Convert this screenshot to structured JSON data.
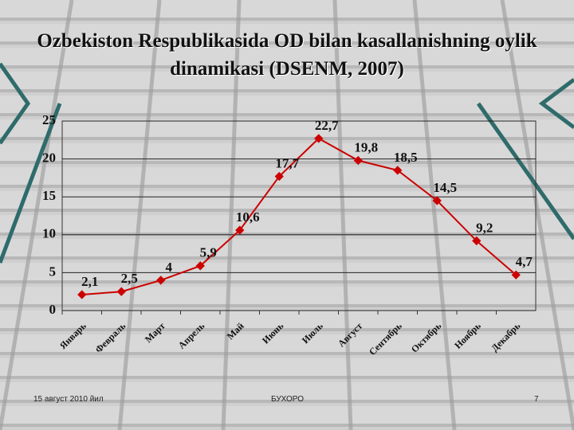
{
  "chart_data": {
    "type": "line",
    "title": "Ozbekiston Respublikasida OD bilan kasallanishning oylik dinamikasi (DSENM, 2007)",
    "categories": [
      "Январь",
      "Февраль",
      "Март",
      "Апрель",
      "Май",
      "Июнь",
      "Июль",
      "Август",
      "Сентябрь",
      "Октябрь",
      "Ноябрь",
      "Декабрь"
    ],
    "series": [
      {
        "color": "#cc0000",
        "values": [
          2.1,
          2.5,
          4,
          5.9,
          10.6,
          17.7,
          22.7,
          19.8,
          18.5,
          14.5,
          9.2,
          4.7
        ],
        "value_labels": [
          "2,1",
          "2,5",
          "4",
          "5,9",
          "10,6",
          "17,7",
          "22,7",
          "19,8",
          "18,5",
          "14,5",
          "9,2",
          "4,7"
        ]
      }
    ],
    "ylim": [
      0,
      25
    ],
    "yticks": [
      0,
      5,
      10,
      15,
      20,
      25
    ],
    "grid": true
  },
  "footer": {
    "date": "15 август 2010 йил",
    "place": "БУХОРО",
    "page": "7"
  }
}
